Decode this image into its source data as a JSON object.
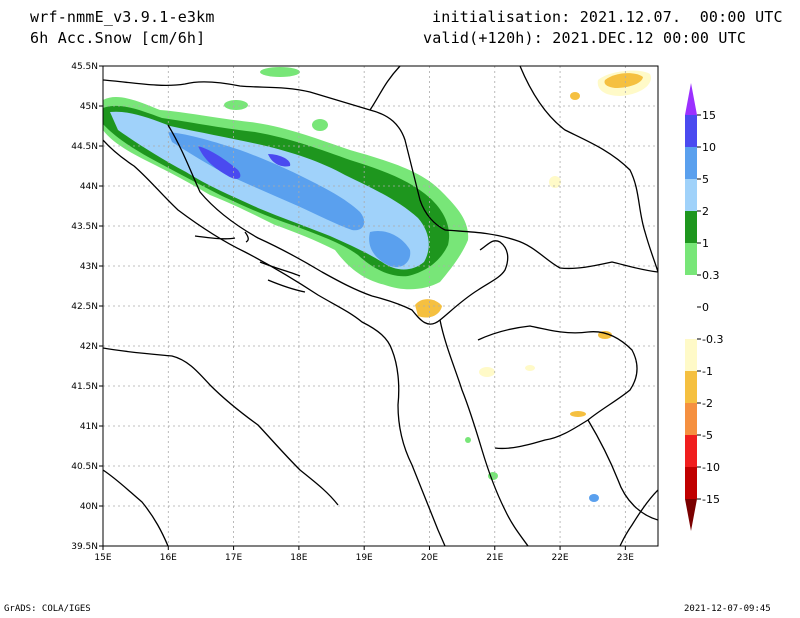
{
  "header": {
    "model": "wrf-nmmE_v3.9.1-e3km",
    "variable": "6h Acc.Snow [cm/6h]",
    "init": "initialisation: 2021.12.07.  00:00 UTC",
    "valid": "valid(+120h): 2021.DEC.12 00:00 UTC"
  },
  "footer": {
    "left": "GrADS: COLA/IGES",
    "right": "2021-12-07-09:45"
  },
  "map": {
    "lat_labels": [
      "45.5N",
      "45N",
      "44.5N",
      "44N",
      "43.5N",
      "43N",
      "42.5N",
      "42N",
      "41.5N",
      "41N",
      "40.5N",
      "40N",
      "39.5N"
    ],
    "lon_labels": [
      "15E",
      "16E",
      "17E",
      "18E",
      "19E",
      "20E",
      "21E",
      "22E",
      "23E"
    ]
  },
  "colorbar": {
    "labels": [
      "15",
      "10",
      "5",
      "2",
      "1",
      "0.3",
      "0",
      "-0.3",
      "-1",
      "-2",
      "-5",
      "-10",
      "-15"
    ],
    "colors": {
      "top": "#9b30ff",
      "c10_15": "#4a4af0",
      "c5_10": "#5aa0ee",
      "c2_5": "#a0d2fa",
      "c1_2": "#1e961e",
      "c03_1": "#78e678",
      "zero": "#ffffff",
      "n03_1": "#fffac8",
      "n1_2": "#f5c040",
      "n2_5": "#f59040",
      "n5_10": "#f01e1e",
      "n10_15": "#c00000",
      "bottom": "#7a0000"
    }
  }
}
